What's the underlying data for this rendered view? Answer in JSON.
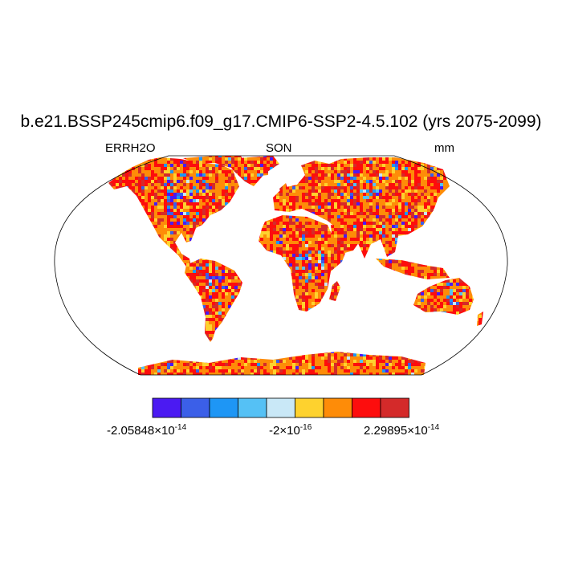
{
  "title": "b.e21.BSSP245cmip6.f09_g17.CMIP6-SSP2-4.5.102 (yrs 2075-2099)",
  "subtitle_left": "ERRH2O",
  "subtitle_center": "SON",
  "subtitle_right": "mm",
  "colorbar": {
    "colors": [
      "#4b1af2",
      "#3b5fe8",
      "#1e96f5",
      "#55c1f5",
      "#c9e8f7",
      "#fed22e",
      "#fe8c08",
      "#fd0d0d",
      "#d42a2a"
    ],
    "labels": [
      {
        "mantissa": "-2.05848",
        "exponent": "-14"
      },
      {
        "mantissa": "-2",
        "exponent": "-16"
      },
      {
        "mantissa": "2.29895",
        "exponent": "-14"
      }
    ]
  },
  "chart_data": {
    "type": "heatmap",
    "projection": "Robinson",
    "variable": "ERRH2O",
    "season": "SON",
    "units": "mm",
    "value_range": [
      -2.05848e-14,
      2.29895e-14
    ],
    "dominant_values": "positive (orange/red) over most land; scattered negative (blue) cells over North America, Amazon, Central Africa, Australia"
  }
}
